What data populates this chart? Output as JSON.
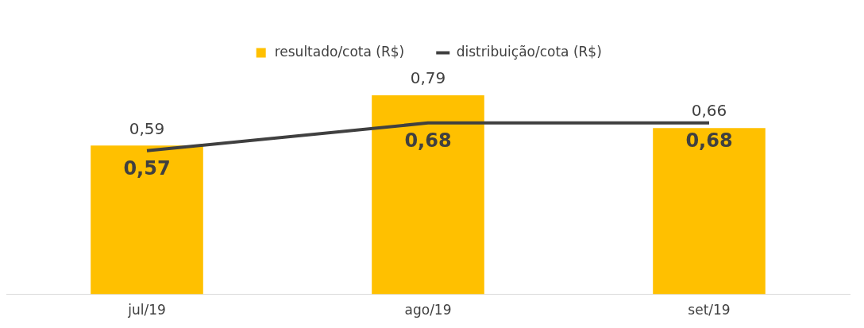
{
  "chart_data": {
    "type": "bar",
    "categories": [
      "jul/19",
      "ago/19",
      "set/19"
    ],
    "series": [
      {
        "name": "resultado/cota (R$)",
        "color": "#ffc000",
        "values": [
          0.59,
          0.79,
          0.66
        ],
        "value_labels": [
          "0,59",
          "0,79",
          "0,66"
        ]
      },
      {
        "name": "distribuição/cota (R$)",
        "type": "line",
        "color": "#404040",
        "values": [
          0.57,
          0.68,
          0.68
        ],
        "value_labels": [
          "0,57",
          "0,68",
          "0,68"
        ]
      }
    ],
    "legend": "top",
    "grid": false,
    "marker": "none"
  }
}
